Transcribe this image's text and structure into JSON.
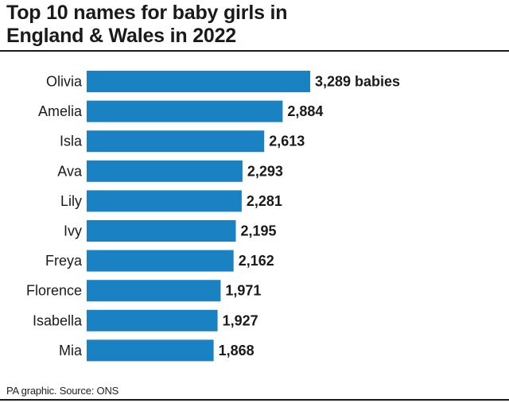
{
  "chart_data": {
    "type": "bar",
    "orientation": "horizontal",
    "title_lines": [
      "Top 10 names for baby girls in",
      "England & Wales in 2022"
    ],
    "categories": [
      "Olivia",
      "Amelia",
      "Isla",
      "Ava",
      "Lily",
      "Ivy",
      "Freya",
      "Florence",
      "Isabella",
      "Mia"
    ],
    "values": [
      3289,
      2884,
      2613,
      2293,
      2281,
      2195,
      2162,
      1971,
      1927,
      1868
    ],
    "value_labels": [
      "3,289 babies",
      "2,884",
      "2,613",
      "2,293",
      "2,281",
      "2,195",
      "2,162",
      "1,971",
      "1,927",
      "1,868"
    ],
    "bar_color": "#1a82c3",
    "grid": false,
    "legend": "none"
  },
  "footer": {
    "source": "PA graphic. Source: ONS"
  }
}
